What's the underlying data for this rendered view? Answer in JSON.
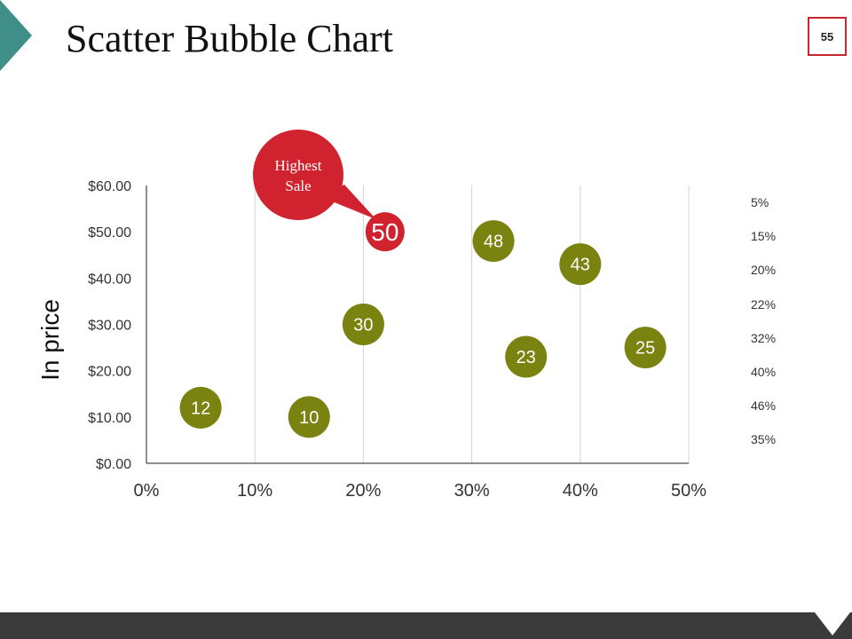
{
  "slide": {
    "title": "Scatter Bubble Chart",
    "page_number": "55",
    "callout": {
      "line1": "Highest",
      "line2": "Sale"
    },
    "colors": {
      "accent_red": "#d1232f",
      "bubble_green": "#7a8210",
      "corner_teal": "#3f8f88",
      "footer": "#3b3b3b"
    }
  },
  "chart_data": {
    "type": "scatter",
    "title": "",
    "xlabel": "",
    "ylabel": "In price",
    "xlim": [
      0,
      50
    ],
    "ylim": [
      0,
      60
    ],
    "x_ticks": [
      "0%",
      "10%",
      "20%",
      "30%",
      "40%",
      "50%"
    ],
    "y_ticks": [
      "$0.00",
      "$10.00",
      "$20.00",
      "$30.00",
      "$40.00",
      "$50.00",
      "$60.00"
    ],
    "grid": "vertical",
    "points": [
      {
        "x": 5,
        "y": 12,
        "label": "12",
        "color": "#7a8210"
      },
      {
        "x": 15,
        "y": 10,
        "label": "10",
        "color": "#7a8210"
      },
      {
        "x": 20,
        "y": 30,
        "label": "30",
        "color": "#7a8210"
      },
      {
        "x": 22,
        "y": 50,
        "label": "50",
        "color": "#d1232f",
        "highlight": true
      },
      {
        "x": 32,
        "y": 48,
        "label": "48",
        "color": "#7a8210"
      },
      {
        "x": 35,
        "y": 23,
        "label": "23",
        "color": "#7a8210"
      },
      {
        "x": 40,
        "y": 43,
        "label": "43",
        "color": "#7a8210"
      },
      {
        "x": 46,
        "y": 25,
        "label": "25",
        "color": "#7a8210"
      }
    ],
    "legend": [
      "5%",
      "15%",
      "20%",
      "22%",
      "32%",
      "40%",
      "46%",
      "35%"
    ],
    "legend_position": "right"
  }
}
